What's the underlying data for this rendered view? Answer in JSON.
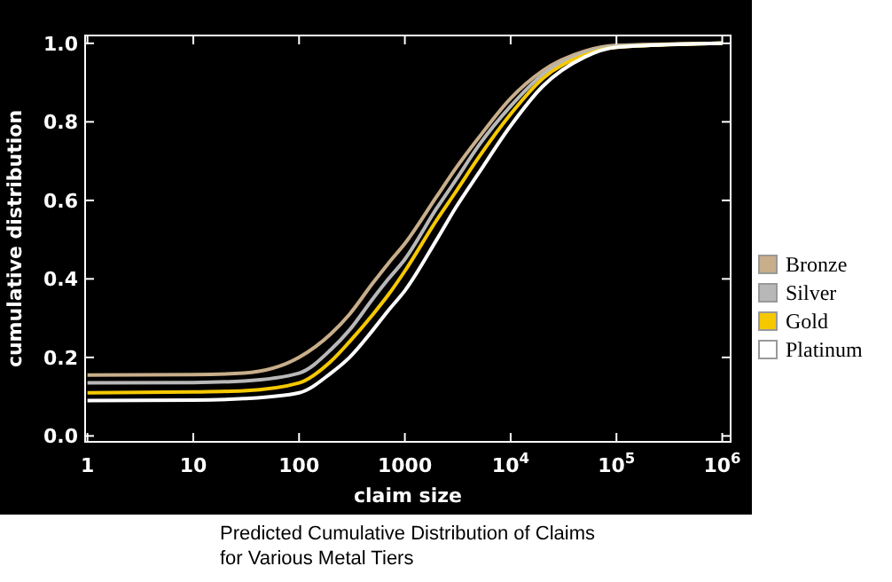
{
  "chart_data": {
    "type": "line",
    "xlabel": "claim size",
    "ylabel": "cumulative distribution",
    "log": "x",
    "grid": false,
    "legend": "right",
    "marker": "none",
    "line_style": "solid",
    "x": [
      1,
      10,
      30,
      100,
      200,
      300,
      500,
      700,
      1000,
      2000,
      3000,
      5000,
      10000,
      20000,
      50000,
      100000,
      1000000
    ],
    "series": [
      {
        "name": "Bronze",
        "color": "#c8ae8a",
        "values": [
          0.155,
          0.156,
          0.16,
          0.2,
          0.26,
          0.31,
          0.39,
          0.44,
          0.49,
          0.61,
          0.68,
          0.76,
          0.86,
          0.93,
          0.98,
          0.995,
          1.0
        ]
      },
      {
        "name": "Silver",
        "color": "#b8b8b8",
        "values": [
          0.135,
          0.136,
          0.14,
          0.16,
          0.22,
          0.27,
          0.35,
          0.4,
          0.45,
          0.58,
          0.65,
          0.74,
          0.84,
          0.92,
          0.975,
          0.993,
          1.0
        ]
      },
      {
        "name": "Gold",
        "color": "#f5c800",
        "values": [
          0.11,
          0.112,
          0.115,
          0.135,
          0.19,
          0.24,
          0.31,
          0.36,
          0.42,
          0.55,
          0.62,
          0.71,
          0.82,
          0.91,
          0.97,
          0.99,
          1.0
        ]
      },
      {
        "name": "Platinum",
        "color": "#ffffff",
        "values": [
          0.09,
          0.091,
          0.095,
          0.11,
          0.16,
          0.2,
          0.27,
          0.32,
          0.37,
          0.5,
          0.58,
          0.67,
          0.79,
          0.89,
          0.965,
          0.99,
          1.0
        ]
      }
    ],
    "xlim": [
      0.95,
      1200000
    ],
    "ylim": [
      -0.015,
      1.02
    ],
    "xticks": [
      1,
      10,
      100,
      1000,
      {
        "value": 10000,
        "label": "10$^{4}$"
      },
      {
        "value": 100000,
        "label": "10$^{5}$"
      },
      {
        "value": 1000000,
        "label": "10$^{6}$"
      }
    ],
    "yticks": [
      {
        "value": 0,
        "label": "0.0"
      },
      {
        "value": 0.2,
        "label": "0.2"
      },
      {
        "value": 0.4,
        "label": "0.4"
      },
      {
        "value": 0.6,
        "label": "0.6"
      },
      {
        "value": 0.8,
        "label": "0.8"
      },
      {
        "value": 1,
        "label": "1.0"
      }
    ],
    "annotations": [
      "Predicted Cumulative Distribution of Claims\nfor Various Metal Tiers"
    ]
  }
}
